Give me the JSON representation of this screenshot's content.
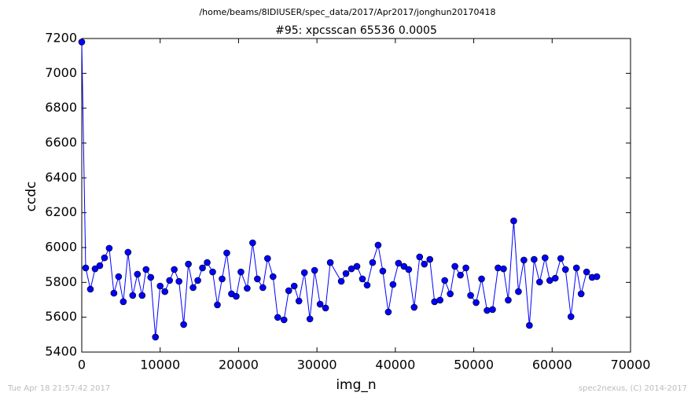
{
  "chart_data": {
    "type": "line",
    "suptitle": "/home/beams/8IDIUSER/spec_data/2017/Apr2017/jonghun20170418",
    "title": "#95: xpcsscan 65536 0.0005",
    "x_label": "img_n",
    "y_label": "ccdc",
    "footer_left": "Tue Apr 18 21:57:42 2017",
    "footer_right": "spec2nexus, (C) 2014-2017",
    "xlim": [
      0,
      70000
    ],
    "xticks": [
      0,
      10000,
      20000,
      30000,
      40000,
      50000,
      60000,
      70000
    ],
    "ylim": [
      5400,
      7200
    ],
    "yticks": [
      5400,
      5600,
      5800,
      6000,
      6200,
      6400,
      6600,
      6800,
      7000,
      7200
    ],
    "color": "#0000ff",
    "markers": true,
    "x": [
      0,
      500,
      1100,
      1700,
      2300,
      2900,
      3500,
      4100,
      4700,
      5300,
      5900,
      6500,
      7100,
      7700,
      8200,
      8800,
      9400,
      10000,
      10600,
      11200,
      11800,
      12400,
      13000,
      13600,
      14200,
      14800,
      15400,
      16000,
      16700,
      17300,
      17900,
      18500,
      19100,
      19700,
      20300,
      21100,
      21800,
      22400,
      23100,
      23700,
      24400,
      25000,
      25800,
      26400,
      27100,
      27700,
      28400,
      29100,
      29700,
      30400,
      31100,
      31700,
      33100,
      33700,
      34400,
      35100,
      35800,
      36400,
      37100,
      37800,
      38400,
      39100,
      39700,
      40400,
      41100,
      41700,
      42400,
      43100,
      43700,
      44400,
      45000,
      45700,
      46300,
      47000,
      47600,
      48300,
      49000,
      49600,
      50300,
      51000,
      51700,
      52400,
      53100,
      53800,
      54400,
      55100,
      55700,
      56400,
      57100,
      57700,
      58400,
      59100,
      59700,
      60400,
      61100,
      61700,
      62400,
      63100,
      63700,
      64400,
      65100,
      65700
    ],
    "values": [
      7180,
      5883,
      5761,
      5878,
      5896,
      5941,
      5996,
      5738,
      5833,
      5689,
      5973,
      5725,
      5847,
      5725,
      5874,
      5829,
      5486,
      5779,
      5747,
      5811,
      5874,
      5806,
      5558,
      5905,
      5770,
      5811,
      5883,
      5914,
      5860,
      5671,
      5820,
      5969,
      5734,
      5720,
      5860,
      5766,
      6027,
      5820,
      5770,
      5937,
      5833,
      5599,
      5585,
      5752,
      5779,
      5693,
      5856,
      5590,
      5869,
      5675,
      5653,
      5914,
      5806,
      5851,
      5878,
      5892,
      5820,
      5784,
      5914,
      6014,
      5865,
      5630,
      5788,
      5910,
      5892,
      5874,
      5657,
      5946,
      5905,
      5932,
      5689,
      5698,
      5811,
      5734,
      5892,
      5842,
      5883,
      5725,
      5684,
      5820,
      5639,
      5644,
      5883,
      5878,
      5698,
      6153,
      5747,
      5928,
      5553,
      5932,
      5802,
      5941,
      5811,
      5824,
      5937,
      5874,
      5603,
      5883,
      5734,
      5860,
      5829,
      5833
    ]
  }
}
